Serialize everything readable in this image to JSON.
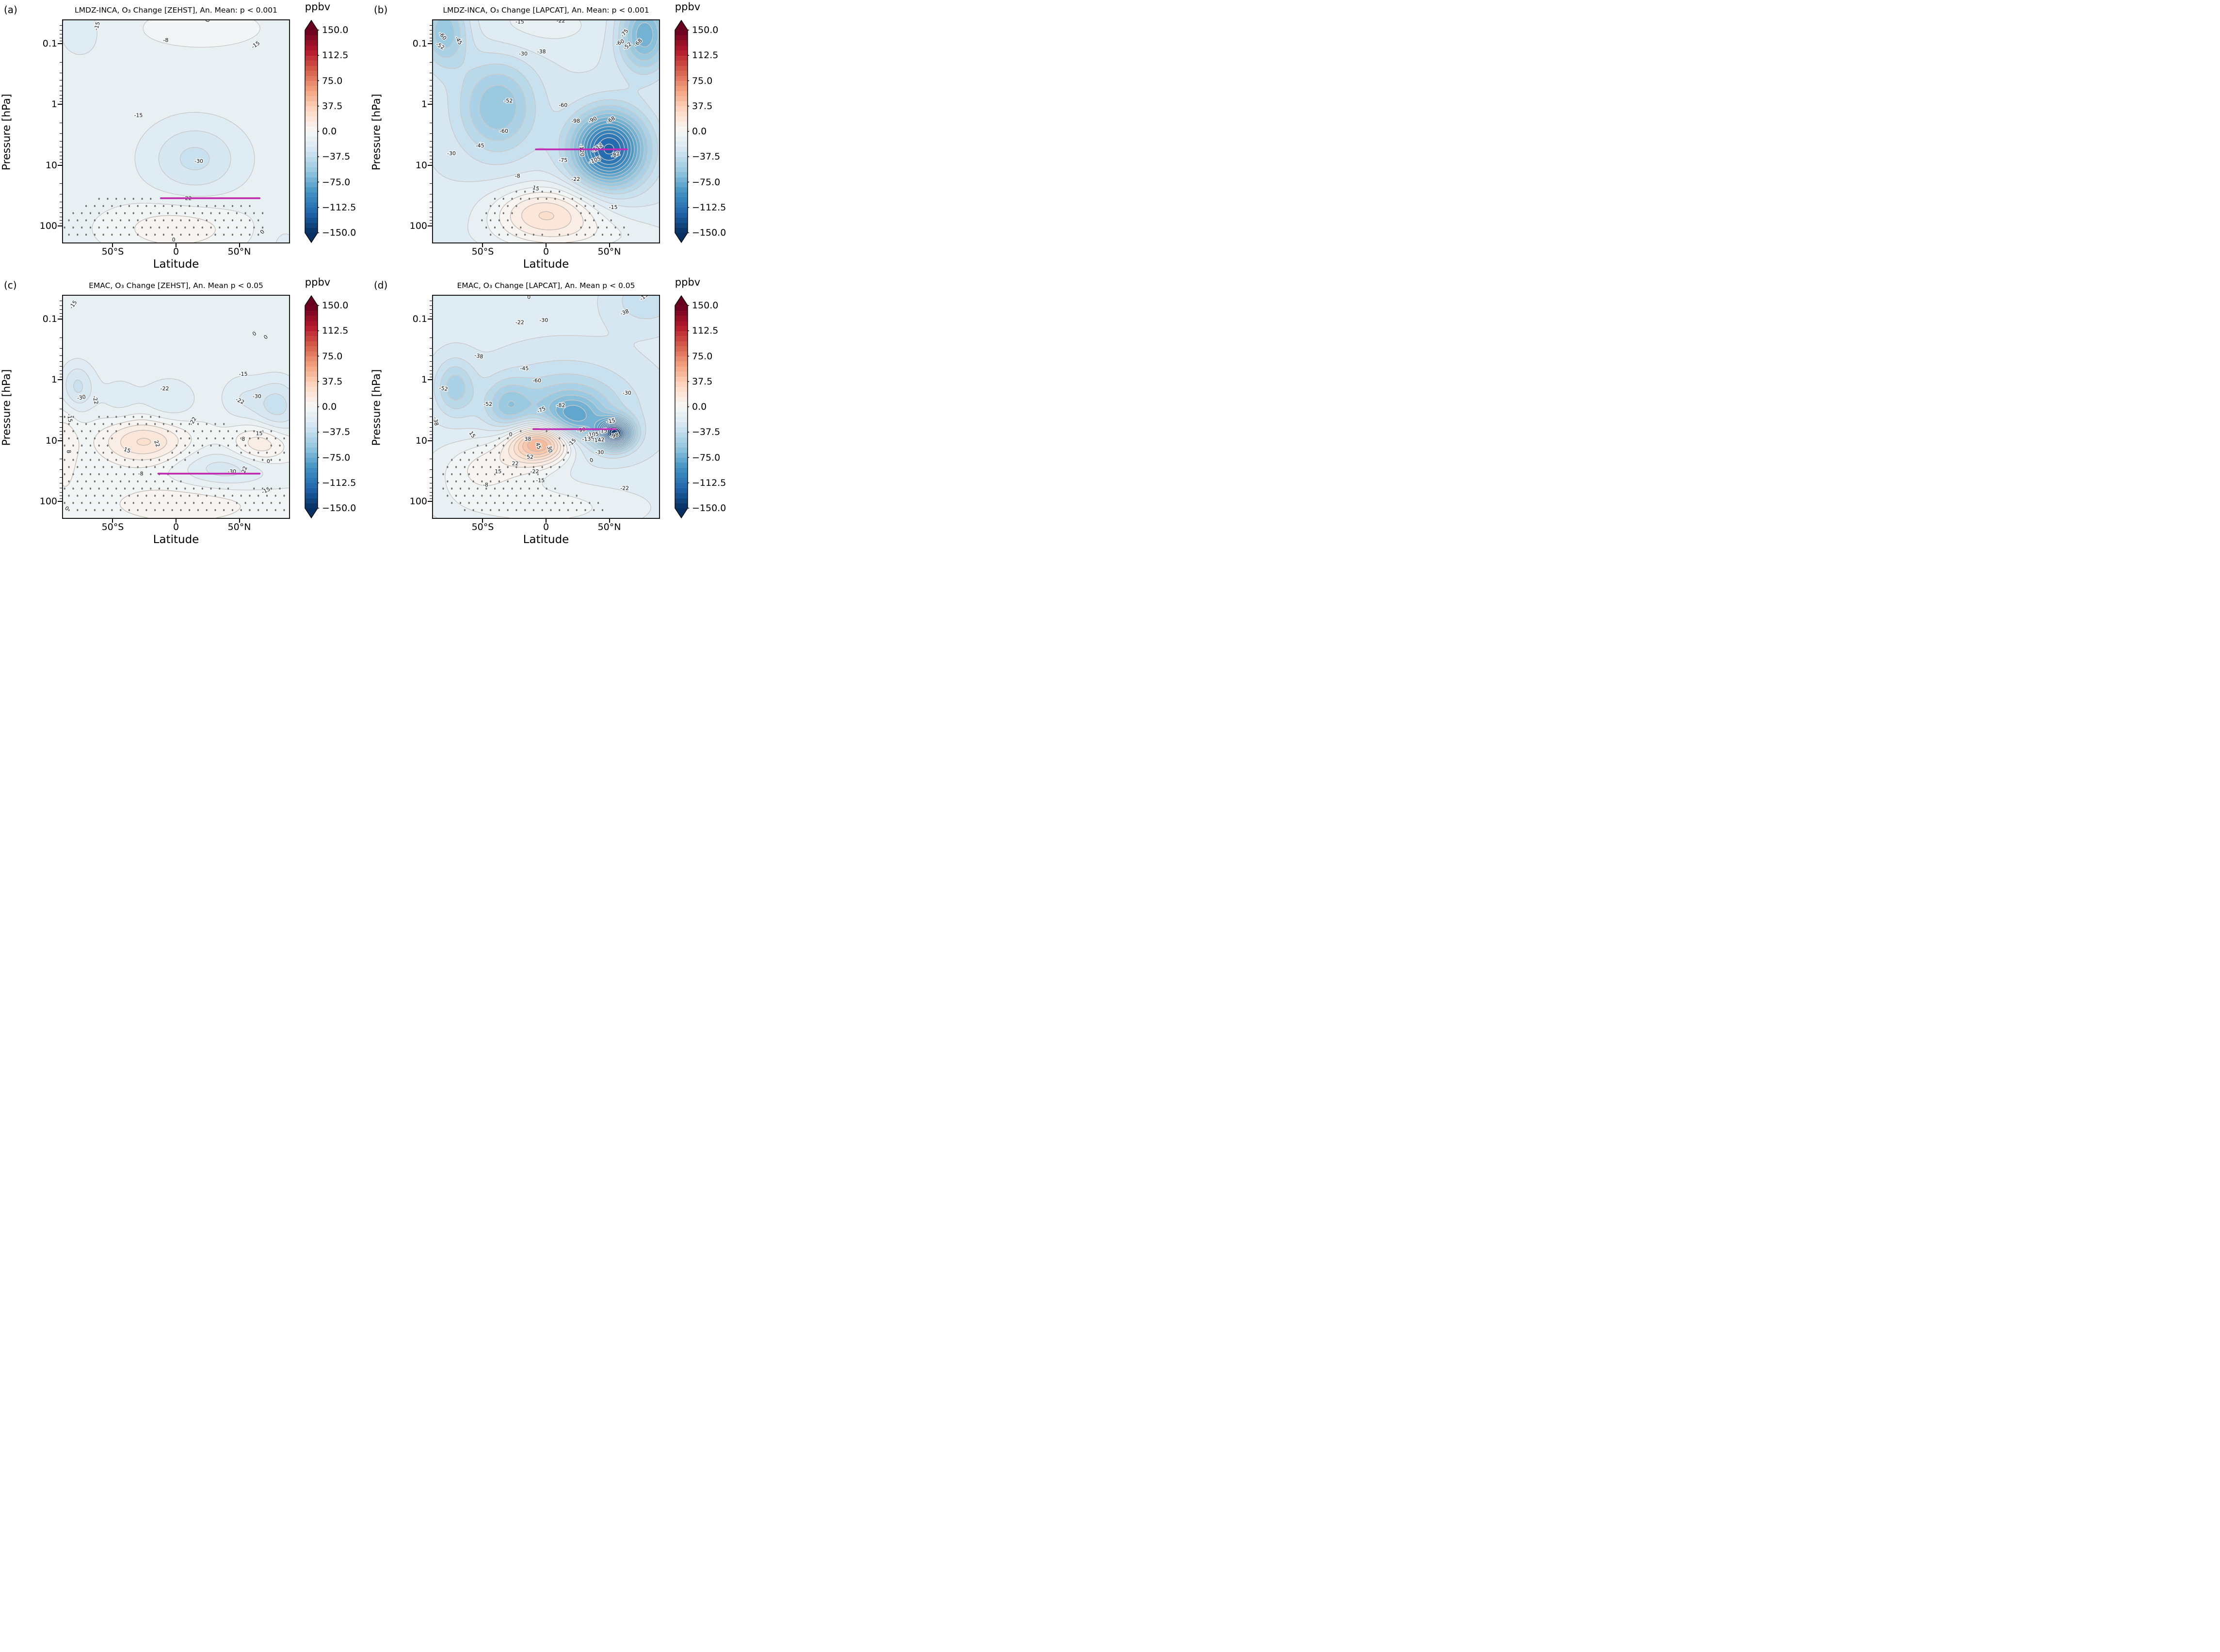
{
  "figure": {
    "background": "#ffffff",
    "unit": "ppbv"
  },
  "style_colors": {
    "flight_track": "#c12cb6",
    "contour_negative": "#c9c9c9",
    "contour_positive": "#c3bcb4",
    "stipple": "#6e6e6e",
    "colormap_stops": [
      "#053061",
      "#2166ac",
      "#4393c3",
      "#92c5de",
      "#d1e5f0",
      "#f7f7f7",
      "#fddbc7",
      "#f4a582",
      "#d6604d",
      "#b2182b",
      "#67001f"
    ]
  },
  "chart_data": {
    "type": "heatmap",
    "subtype": "filled-contour latitude-pressure sections, 2x2 grid",
    "units": "ppbv",
    "contour_interval": 7.5,
    "x": {
      "label": "Latitude",
      "range": [
        -90,
        90
      ],
      "tick_values": [
        -50,
        0,
        50
      ],
      "tick_labels": [
        "50°S",
        "0",
        "50°N"
      ]
    },
    "y": {
      "label": "Pressure [hPa]",
      "scale": "log-inverted",
      "top_hpa": 0.04,
      "bottom_hpa": 194,
      "tick_values": [
        0.1,
        1,
        10,
        100
      ],
      "tick_labels": [
        "0.1",
        "1",
        "10",
        "100"
      ]
    },
    "colorbar": {
      "label": "ppbv",
      "min": -150,
      "max": 150,
      "band_step": 7.5,
      "tick_values": [
        150,
        112.5,
        75,
        37.5,
        0,
        -37.5,
        -75,
        -112.5,
        -150
      ],
      "tick_labels": [
        "150.0",
        "112.5",
        "75.0",
        "37.5",
        "0.0",
        "−37.5",
        "−75.0",
        "−112.5",
        "−150.0"
      ]
    },
    "panels": [
      {
        "letter": "(a)",
        "title": "LMDZ-INCA, O₃ Change [ZEHST], An. Mean: p < 0.001",
        "model": "LMDZ-INCA",
        "scenario": "ZEHST",
        "significance": "p < 0.001",
        "approx_min_ppbv": -32,
        "approx_max_ppbv": 8,
        "flight_track": {
          "pressure_hpa": 35,
          "lat_from": -12,
          "lat_to": 66
        },
        "stipple": {
          "abs_value_below": 10,
          "pressure_greater_hpa": 20
        },
        "field_blobs": {
          "base": -11,
          "blobs": [
            [
              15,
              0.9,
              26,
              0.42,
              -21
            ],
            [
              0,
              2.05,
              38,
              0.3,
              16
            ],
            [
              -75,
              -1.2,
              16,
              0.38,
              -7
            ],
            [
              20,
              -1.25,
              45,
              0.3,
              6
            ],
            [
              85,
              2.3,
              12,
              0.3,
              -6
            ]
          ]
        },
        "contour_labels": [
          {
            "v": "-15",
            "x": 0.155,
            "y": 0.03,
            "r": -75
          },
          {
            "v": "-8",
            "x": 0.455,
            "y": 0.095,
            "r": 0
          },
          {
            "v": "0",
            "x": 0.64,
            "y": 0.005,
            "r": -70
          },
          {
            "v": "-15",
            "x": 0.85,
            "y": 0.115,
            "r": -35
          },
          {
            "v": "-15",
            "x": 0.335,
            "y": 0.43,
            "r": 0
          },
          {
            "v": "-30",
            "x": 0.6,
            "y": 0.635,
            "r": 0
          },
          {
            "v": "-22",
            "x": 0.55,
            "y": 0.8,
            "r": 0
          },
          {
            "v": "0",
            "x": 0.49,
            "y": 0.985,
            "r": 0
          },
          {
            "v": "0",
            "x": 0.88,
            "y": 0.95,
            "r": -50
          }
        ]
      },
      {
        "letter": "(b)",
        "title": "LMDZ-INCA, O₃ Change [LAPCAT], An. Mean: p < 0.001",
        "model": "LMDZ-INCA",
        "scenario": "LAPCAT",
        "significance": "p < 0.001",
        "approx_min_ppbv": -122,
        "approx_max_ppbv": 20,
        "flight_track": {
          "pressure_hpa": 5.5,
          "lat_from": -8,
          "lat_to": 64
        },
        "stipple": {
          "abs_value_below": 10,
          "pressure_greater_hpa": 25
        },
        "field_blobs": {
          "base": -22,
          "blobs": [
            [
              50,
              0.74,
              20,
              0.42,
              -100
            ],
            [
              -38,
              0.05,
              22,
              0.55,
              -38
            ],
            [
              78,
              -1.15,
              14,
              0.42,
              -52
            ],
            [
              -80,
              -1.2,
              13,
              0.4,
              -38
            ],
            [
              0,
              1.78,
              30,
              0.3,
              42
            ],
            [
              -5,
              -1.3,
              40,
              0.32,
              10
            ],
            [
              30,
              2.2,
              60,
              0.25,
              14
            ]
          ]
        },
        "contour_labels": [
          {
            "v": "-15",
            "x": 0.385,
            "y": 0.012,
            "r": 0
          },
          {
            "v": "-22",
            "x": 0.565,
            "y": 0.008,
            "r": 0
          },
          {
            "v": "-60",
            "x": 0.045,
            "y": 0.075,
            "r": 50
          },
          {
            "v": "-52",
            "x": 0.035,
            "y": 0.12,
            "r": 30
          },
          {
            "v": "-45",
            "x": 0.115,
            "y": 0.095,
            "r": 60
          },
          {
            "v": "-75",
            "x": 0.845,
            "y": 0.062,
            "r": -50
          },
          {
            "v": "-60",
            "x": 0.825,
            "y": 0.105,
            "r": -25
          },
          {
            "v": "-52",
            "x": 0.858,
            "y": 0.12,
            "r": -40
          },
          {
            "v": "-68",
            "x": 0.905,
            "y": 0.105,
            "r": -45
          },
          {
            "v": "-30",
            "x": 0.4,
            "y": 0.155,
            "r": 0
          },
          {
            "v": "-38",
            "x": 0.48,
            "y": 0.145,
            "r": 0
          },
          {
            "v": "-52",
            "x": 0.335,
            "y": 0.365,
            "r": 0
          },
          {
            "v": "-60",
            "x": 0.575,
            "y": 0.385,
            "r": 0
          },
          {
            "v": "-60",
            "x": 0.315,
            "y": 0.5,
            "r": 0
          },
          {
            "v": "-45",
            "x": 0.21,
            "y": 0.565,
            "r": 0
          },
          {
            "v": "-30",
            "x": 0.085,
            "y": 0.6,
            "r": 0
          },
          {
            "v": "-98",
            "x": 0.63,
            "y": 0.455,
            "r": 0
          },
          {
            "v": "-90",
            "x": 0.705,
            "y": 0.45,
            "r": -25
          },
          {
            "v": "-68",
            "x": 0.785,
            "y": 0.45,
            "r": -30
          },
          {
            "v": "-120",
            "x": 0.655,
            "y": 0.585,
            "r": 85
          },
          {
            "v": "-112",
            "x": 0.725,
            "y": 0.575,
            "r": -35
          },
          {
            "v": "-105",
            "x": 0.715,
            "y": 0.63,
            "r": -20
          },
          {
            "v": "-82",
            "x": 0.805,
            "y": 0.605,
            "r": -20
          },
          {
            "v": "-75",
            "x": 0.575,
            "y": 0.63,
            "r": 0
          },
          {
            "v": "-8",
            "x": 0.375,
            "y": 0.7,
            "r": 0
          },
          {
            "v": "-22",
            "x": 0.63,
            "y": 0.715,
            "r": 0
          },
          {
            "v": "15",
            "x": 0.455,
            "y": 0.755,
            "r": 15
          },
          {
            "v": "-15",
            "x": 0.795,
            "y": 0.84,
            "r": 0
          }
        ]
      },
      {
        "letter": "(c)",
        "title": "EMAC, O₃ Change [ZEHST], An. Mean p < 0.05",
        "model": "EMAC",
        "scenario": "ZEHST",
        "significance": "p < 0.05",
        "approx_min_ppbv": -34,
        "approx_max_ppbv": 25,
        "flight_track": {
          "pressure_hpa": 35,
          "lat_from": -14,
          "lat_to": 66
        },
        "stipple": {
          "abs_value_below": 9,
          "pressure_greater_hpa": 1.5
        },
        "field_blobs": {
          "base": -8,
          "blobs": [
            [
              -78,
              0.12,
              10,
              0.3,
              -24
            ],
            [
              -45,
              0.3,
              12,
              0.3,
              -10
            ],
            [
              -5,
              0.33,
              16,
              0.28,
              -15
            ],
            [
              80,
              0.45,
              14,
              0.35,
              -26
            ],
            [
              50,
              0.3,
              12,
              0.3,
              -12
            ],
            [
              -25,
              1.02,
              24,
              0.26,
              32
            ],
            [
              68,
              1.06,
              16,
              0.24,
              25
            ],
            [
              40,
              1.48,
              28,
              0.22,
              -20
            ],
            [
              5,
              2.05,
              50,
              0.28,
              13
            ],
            [
              -88,
              1.15,
              8,
              0.5,
              14
            ]
          ]
        },
        "contour_labels": [
          {
            "v": "-15",
            "x": 0.05,
            "y": 0.045,
            "r": -55
          },
          {
            "v": "0",
            "x": 0.845,
            "y": 0.175,
            "r": -35
          },
          {
            "v": "0",
            "x": 0.895,
            "y": 0.19,
            "r": -40
          },
          {
            "v": "-15",
            "x": 0.795,
            "y": 0.355,
            "r": 0
          },
          {
            "v": "-22",
            "x": 0.45,
            "y": 0.42,
            "r": 0
          },
          {
            "v": "-30",
            "x": 0.085,
            "y": 0.46,
            "r": -10
          },
          {
            "v": "-22",
            "x": 0.145,
            "y": 0.47,
            "r": 75
          },
          {
            "v": "-22",
            "x": 0.78,
            "y": 0.475,
            "r": 25
          },
          {
            "v": "-30",
            "x": 0.855,
            "y": 0.455,
            "r": 0
          },
          {
            "v": "-15",
            "x": 0.032,
            "y": 0.55,
            "r": 80
          },
          {
            "v": "-22",
            "x": 0.575,
            "y": 0.565,
            "r": -60
          },
          {
            "v": "15",
            "x": 0.285,
            "y": 0.695,
            "r": 20
          },
          {
            "v": "22",
            "x": 0.415,
            "y": 0.665,
            "r": 70
          },
          {
            "v": "8",
            "x": 0.795,
            "y": 0.645,
            "r": 10
          },
          {
            "v": "15",
            "x": 0.865,
            "y": 0.62,
            "r": 0
          },
          {
            "v": "8",
            "x": 0.028,
            "y": 0.7,
            "r": 85
          },
          {
            "v": "-8",
            "x": 0.345,
            "y": 0.8,
            "r": 0
          },
          {
            "v": "-30",
            "x": 0.745,
            "y": 0.79,
            "r": 0
          },
          {
            "v": "-22",
            "x": 0.8,
            "y": 0.785,
            "r": -70
          },
          {
            "v": "0",
            "x": 0.905,
            "y": 0.745,
            "r": 0
          },
          {
            "v": "0",
            "x": 0.02,
            "y": 0.955,
            "r": 40
          },
          {
            "v": "-15",
            "x": 0.895,
            "y": 0.875,
            "r": -25
          }
        ]
      },
      {
        "letter": "(d)",
        "title": "EMAC, O₃ Change [LAPCAT], An. Mean p < 0.05",
        "model": "EMAC",
        "scenario": "LAPCAT",
        "significance": "p < 0.05",
        "approx_min_ppbv": -145,
        "approx_max_ppbv": 55,
        "flight_track": {
          "pressure_hpa": 6.5,
          "lat_from": -10,
          "lat_to": 55
        },
        "stipple": {
          "abs_value_below": 9,
          "pressure_greater_hpa": 3
        },
        "field_blobs": {
          "base": -20,
          "blobs": [
            [
              15,
              0.5,
              40,
              0.55,
              -30
            ],
            [
              22,
              0.62,
              16,
              0.26,
              -35
            ],
            [
              -72,
              0.12,
              11,
              0.32,
              -28
            ],
            [
              -30,
              0.42,
              12,
              0.28,
              -25
            ],
            [
              55,
              0.885,
              9,
              0.16,
              -120
            ],
            [
              -4,
              1.03,
              17,
              0.22,
              78
            ],
            [
              -25,
              1.3,
              30,
              0.3,
              22
            ],
            [
              0,
              2.1,
              55,
              0.3,
              16
            ],
            [
              80,
              -1.3,
              20,
              0.3,
              -16
            ],
            [
              -60,
              1.6,
              25,
              0.35,
              12
            ]
          ]
        },
        "contour_labels": [
          {
            "v": "0",
            "x": 0.425,
            "y": 0.012,
            "r": 0
          },
          {
            "v": "-15",
            "x": 0.93,
            "y": 0.01,
            "r": -40
          },
          {
            "v": "-38",
            "x": 0.845,
            "y": 0.08,
            "r": -20
          },
          {
            "v": "-22",
            "x": 0.385,
            "y": 0.125,
            "r": 0
          },
          {
            "v": "-30",
            "x": 0.49,
            "y": 0.115,
            "r": 0
          },
          {
            "v": "-38",
            "x": 0.205,
            "y": 0.275,
            "r": 10
          },
          {
            "v": "-45",
            "x": 0.405,
            "y": 0.33,
            "r": 0
          },
          {
            "v": "-60",
            "x": 0.46,
            "y": 0.385,
            "r": 0
          },
          {
            "v": "-52",
            "x": 0.05,
            "y": 0.42,
            "r": 10
          },
          {
            "v": "-52",
            "x": 0.245,
            "y": 0.49,
            "r": 0
          },
          {
            "v": "-75",
            "x": 0.48,
            "y": 0.515,
            "r": -25
          },
          {
            "v": "-82",
            "x": 0.565,
            "y": 0.495,
            "r": 0
          },
          {
            "v": "-30",
            "x": 0.855,
            "y": 0.44,
            "r": 0
          },
          {
            "v": "-38",
            "x": 0.015,
            "y": 0.565,
            "r": 80
          },
          {
            "v": "15",
            "x": 0.175,
            "y": 0.625,
            "r": 55
          },
          {
            "v": "0",
            "x": 0.345,
            "y": 0.625,
            "r": 0
          },
          {
            "v": "38",
            "x": 0.42,
            "y": 0.645,
            "r": 0
          },
          {
            "v": "45",
            "x": 0.465,
            "y": 0.675,
            "r": 70
          },
          {
            "v": "30",
            "x": 0.515,
            "y": 0.69,
            "r": 75
          },
          {
            "v": "-15",
            "x": 0.615,
            "y": 0.66,
            "r": -45
          },
          {
            "v": "-90",
            "x": 0.655,
            "y": 0.605,
            "r": -10
          },
          {
            "v": "-105",
            "x": 0.705,
            "y": 0.625,
            "r": -5
          },
          {
            "v": "-75",
            "x": 0.75,
            "y": 0.61,
            "r": -10
          },
          {
            "v": "-98",
            "x": 0.8,
            "y": 0.63,
            "r": -15
          },
          {
            "v": "-135",
            "x": 0.685,
            "y": 0.645,
            "r": -5
          },
          {
            "v": "-142",
            "x": 0.73,
            "y": 0.65,
            "r": -5
          },
          {
            "v": "-15",
            "x": 0.785,
            "y": 0.565,
            "r": -10
          },
          {
            "v": "52",
            "x": 0.43,
            "y": 0.725,
            "r": 0
          },
          {
            "v": "22",
            "x": 0.365,
            "y": 0.755,
            "r": 0
          },
          {
            "v": "15",
            "x": 0.29,
            "y": 0.79,
            "r": 0
          },
          {
            "v": "-8",
            "x": 0.235,
            "y": 0.85,
            "r": 0
          },
          {
            "v": "-22",
            "x": 0.45,
            "y": 0.79,
            "r": 0
          },
          {
            "v": "-15",
            "x": 0.475,
            "y": 0.83,
            "r": 0
          },
          {
            "v": "-30",
            "x": 0.735,
            "y": 0.705,
            "r": 0
          },
          {
            "v": "0",
            "x": 0.7,
            "y": 0.74,
            "r": -20
          },
          {
            "v": "-22",
            "x": 0.845,
            "y": 0.865,
            "r": 0
          }
        ]
      }
    ]
  }
}
